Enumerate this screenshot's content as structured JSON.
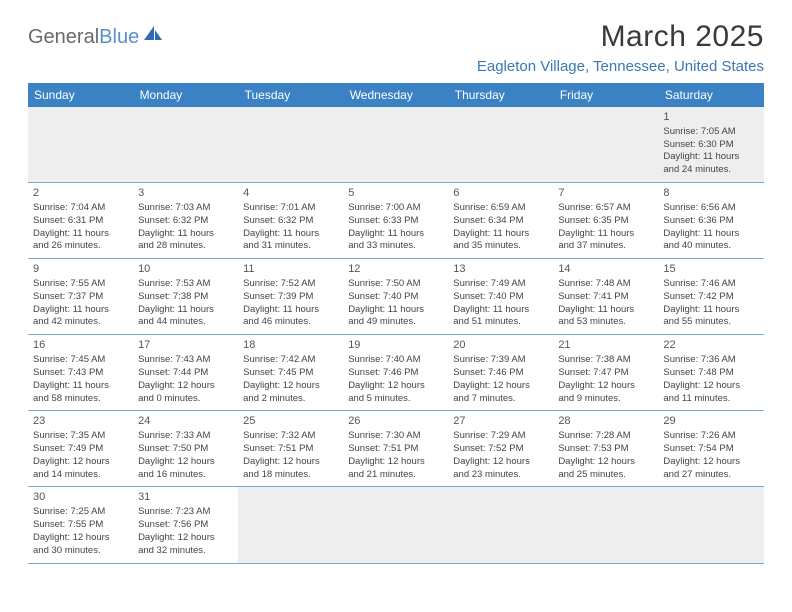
{
  "brand": {
    "part1": "General",
    "part2": "Blue"
  },
  "title": {
    "monthYear": "March 2025",
    "location": "Eagleton Village, Tennessee, United States"
  },
  "theme": {
    "headerBg": "#3b82c4",
    "headerText": "#ffffff",
    "accent": "#3b78b5",
    "borderColor": "#7aa8d4",
    "shadeBg": "#eeeeee",
    "bodyText": "#444444"
  },
  "dayHeaders": [
    "Sunday",
    "Monday",
    "Tuesday",
    "Wednesday",
    "Thursday",
    "Friday",
    "Saturday"
  ],
  "weeks": [
    [
      null,
      null,
      null,
      null,
      null,
      null,
      {
        "n": "1",
        "sr": "Sunrise: 7:05 AM",
        "ss": "Sunset: 6:30 PM",
        "d1": "Daylight: 11 hours",
        "d2": "and 24 minutes."
      }
    ],
    [
      {
        "n": "2",
        "sr": "Sunrise: 7:04 AM",
        "ss": "Sunset: 6:31 PM",
        "d1": "Daylight: 11 hours",
        "d2": "and 26 minutes."
      },
      {
        "n": "3",
        "sr": "Sunrise: 7:03 AM",
        "ss": "Sunset: 6:32 PM",
        "d1": "Daylight: 11 hours",
        "d2": "and 28 minutes."
      },
      {
        "n": "4",
        "sr": "Sunrise: 7:01 AM",
        "ss": "Sunset: 6:32 PM",
        "d1": "Daylight: 11 hours",
        "d2": "and 31 minutes."
      },
      {
        "n": "5",
        "sr": "Sunrise: 7:00 AM",
        "ss": "Sunset: 6:33 PM",
        "d1": "Daylight: 11 hours",
        "d2": "and 33 minutes."
      },
      {
        "n": "6",
        "sr": "Sunrise: 6:59 AM",
        "ss": "Sunset: 6:34 PM",
        "d1": "Daylight: 11 hours",
        "d2": "and 35 minutes."
      },
      {
        "n": "7",
        "sr": "Sunrise: 6:57 AM",
        "ss": "Sunset: 6:35 PM",
        "d1": "Daylight: 11 hours",
        "d2": "and 37 minutes."
      },
      {
        "n": "8",
        "sr": "Sunrise: 6:56 AM",
        "ss": "Sunset: 6:36 PM",
        "d1": "Daylight: 11 hours",
        "d2": "and 40 minutes."
      }
    ],
    [
      {
        "n": "9",
        "sr": "Sunrise: 7:55 AM",
        "ss": "Sunset: 7:37 PM",
        "d1": "Daylight: 11 hours",
        "d2": "and 42 minutes."
      },
      {
        "n": "10",
        "sr": "Sunrise: 7:53 AM",
        "ss": "Sunset: 7:38 PM",
        "d1": "Daylight: 11 hours",
        "d2": "and 44 minutes."
      },
      {
        "n": "11",
        "sr": "Sunrise: 7:52 AM",
        "ss": "Sunset: 7:39 PM",
        "d1": "Daylight: 11 hours",
        "d2": "and 46 minutes."
      },
      {
        "n": "12",
        "sr": "Sunrise: 7:50 AM",
        "ss": "Sunset: 7:40 PM",
        "d1": "Daylight: 11 hours",
        "d2": "and 49 minutes."
      },
      {
        "n": "13",
        "sr": "Sunrise: 7:49 AM",
        "ss": "Sunset: 7:40 PM",
        "d1": "Daylight: 11 hours",
        "d2": "and 51 minutes."
      },
      {
        "n": "14",
        "sr": "Sunrise: 7:48 AM",
        "ss": "Sunset: 7:41 PM",
        "d1": "Daylight: 11 hours",
        "d2": "and 53 minutes."
      },
      {
        "n": "15",
        "sr": "Sunrise: 7:46 AM",
        "ss": "Sunset: 7:42 PM",
        "d1": "Daylight: 11 hours",
        "d2": "and 55 minutes."
      }
    ],
    [
      {
        "n": "16",
        "sr": "Sunrise: 7:45 AM",
        "ss": "Sunset: 7:43 PM",
        "d1": "Daylight: 11 hours",
        "d2": "and 58 minutes."
      },
      {
        "n": "17",
        "sr": "Sunrise: 7:43 AM",
        "ss": "Sunset: 7:44 PM",
        "d1": "Daylight: 12 hours",
        "d2": "and 0 minutes."
      },
      {
        "n": "18",
        "sr": "Sunrise: 7:42 AM",
        "ss": "Sunset: 7:45 PM",
        "d1": "Daylight: 12 hours",
        "d2": "and 2 minutes."
      },
      {
        "n": "19",
        "sr": "Sunrise: 7:40 AM",
        "ss": "Sunset: 7:46 PM",
        "d1": "Daylight: 12 hours",
        "d2": "and 5 minutes."
      },
      {
        "n": "20",
        "sr": "Sunrise: 7:39 AM",
        "ss": "Sunset: 7:46 PM",
        "d1": "Daylight: 12 hours",
        "d2": "and 7 minutes."
      },
      {
        "n": "21",
        "sr": "Sunrise: 7:38 AM",
        "ss": "Sunset: 7:47 PM",
        "d1": "Daylight: 12 hours",
        "d2": "and 9 minutes."
      },
      {
        "n": "22",
        "sr": "Sunrise: 7:36 AM",
        "ss": "Sunset: 7:48 PM",
        "d1": "Daylight: 12 hours",
        "d2": "and 11 minutes."
      }
    ],
    [
      {
        "n": "23",
        "sr": "Sunrise: 7:35 AM",
        "ss": "Sunset: 7:49 PM",
        "d1": "Daylight: 12 hours",
        "d2": "and 14 minutes."
      },
      {
        "n": "24",
        "sr": "Sunrise: 7:33 AM",
        "ss": "Sunset: 7:50 PM",
        "d1": "Daylight: 12 hours",
        "d2": "and 16 minutes."
      },
      {
        "n": "25",
        "sr": "Sunrise: 7:32 AM",
        "ss": "Sunset: 7:51 PM",
        "d1": "Daylight: 12 hours",
        "d2": "and 18 minutes."
      },
      {
        "n": "26",
        "sr": "Sunrise: 7:30 AM",
        "ss": "Sunset: 7:51 PM",
        "d1": "Daylight: 12 hours",
        "d2": "and 21 minutes."
      },
      {
        "n": "27",
        "sr": "Sunrise: 7:29 AM",
        "ss": "Sunset: 7:52 PM",
        "d1": "Daylight: 12 hours",
        "d2": "and 23 minutes."
      },
      {
        "n": "28",
        "sr": "Sunrise: 7:28 AM",
        "ss": "Sunset: 7:53 PM",
        "d1": "Daylight: 12 hours",
        "d2": "and 25 minutes."
      },
      {
        "n": "29",
        "sr": "Sunrise: 7:26 AM",
        "ss": "Sunset: 7:54 PM",
        "d1": "Daylight: 12 hours",
        "d2": "and 27 minutes."
      }
    ],
    [
      {
        "n": "30",
        "sr": "Sunrise: 7:25 AM",
        "ss": "Sunset: 7:55 PM",
        "d1": "Daylight: 12 hours",
        "d2": "and 30 minutes."
      },
      {
        "n": "31",
        "sr": "Sunrise: 7:23 AM",
        "ss": "Sunset: 7:56 PM",
        "d1": "Daylight: 12 hours",
        "d2": "and 32 minutes."
      },
      null,
      null,
      null,
      null,
      null
    ]
  ]
}
